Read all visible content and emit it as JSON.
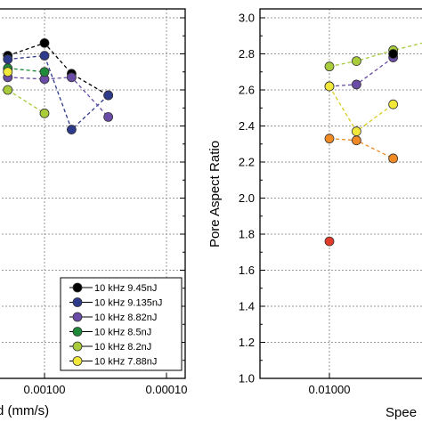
{
  "chart_data": [
    {
      "type": "line",
      "panel": "left",
      "xscale": "log-reversed",
      "x_tick_labels": [
        "0.00100",
        "0.00010"
      ],
      "xlabel": "d (mm/s)",
      "ylabel": "",
      "ylim": [
        1.0,
        3.0
      ],
      "grid": true,
      "legend_placement": "bottom-right",
      "series": [
        {
          "name": "10 kHz 9.45nJ",
          "color": "#000000",
          "x": [
            0.002,
            0.001,
            0.0006,
            0.0003
          ],
          "y": [
            2.79,
            2.86,
            2.69,
            2.57
          ]
        },
        {
          "name": "10 kHz 9.135nJ",
          "color": "#2e3a8c",
          "x": [
            0.002,
            0.001,
            0.0006,
            0.0003
          ],
          "y": [
            2.77,
            2.79,
            2.38,
            2.57
          ]
        },
        {
          "name": "10 kHz 8.82nJ",
          "color": "#6a4ca8",
          "x": [
            0.002,
            0.001,
            0.0006,
            0.0003
          ],
          "y": [
            2.67,
            2.66,
            2.67,
            2.45
          ]
        },
        {
          "name": "10 kHz 8.5nJ",
          "color": "#1f8a3a",
          "x": [
            0.002,
            0.001
          ],
          "y": [
            2.72,
            2.7
          ]
        },
        {
          "name": "10 kHz 8.2nJ",
          "color": "#a8cc3a",
          "x": [
            0.002,
            0.001
          ],
          "y": [
            2.6,
            2.47
          ]
        },
        {
          "name": "10 kHz 7.88nJ",
          "color": "#f2e83a",
          "x": [
            0.002
          ],
          "y": [
            2.7
          ]
        }
      ]
    },
    {
      "type": "line",
      "panel": "right",
      "xscale": "log-reversed",
      "x_tick_labels": [
        "0.01000"
      ],
      "xlabel": "Spee",
      "ylabel": "Pore Aspect Ratio",
      "y_tick_labels": [
        "1.0",
        "1.2",
        "1.4",
        "1.6",
        "1.8",
        "2.0",
        "2.2",
        "2.4",
        "2.6",
        "2.8",
        "3.0"
      ],
      "ylim": [
        1.0,
        3.05
      ],
      "grid": true,
      "series": [
        {
          "name": "lime",
          "color": "#a8cc3a",
          "x": [
            0.01,
            0.006,
            0.003,
            0.0015
          ],
          "y": [
            2.73,
            2.76,
            2.82,
            2.87
          ]
        },
        {
          "name": "purple",
          "color": "#6a4ca8",
          "x": [
            0.01,
            0.006,
            0.003
          ],
          "y": [
            2.62,
            2.63,
            2.78
          ]
        },
        {
          "name": "yellow",
          "color": "#f2e83a",
          "x": [
            0.01,
            0.006,
            0.003
          ],
          "y": [
            2.62,
            2.37,
            2.52
          ]
        },
        {
          "name": "orange",
          "color": "#f08a24",
          "x": [
            0.01,
            0.006,
            0.003
          ],
          "y": [
            2.33,
            2.32,
            2.22
          ]
        },
        {
          "name": "red",
          "color": "#e03a2a",
          "x": [
            0.01
          ],
          "y": [
            1.76
          ]
        },
        {
          "name": "black",
          "color": "#000000",
          "x": [
            0.003
          ],
          "y": [
            2.8
          ]
        }
      ]
    }
  ]
}
